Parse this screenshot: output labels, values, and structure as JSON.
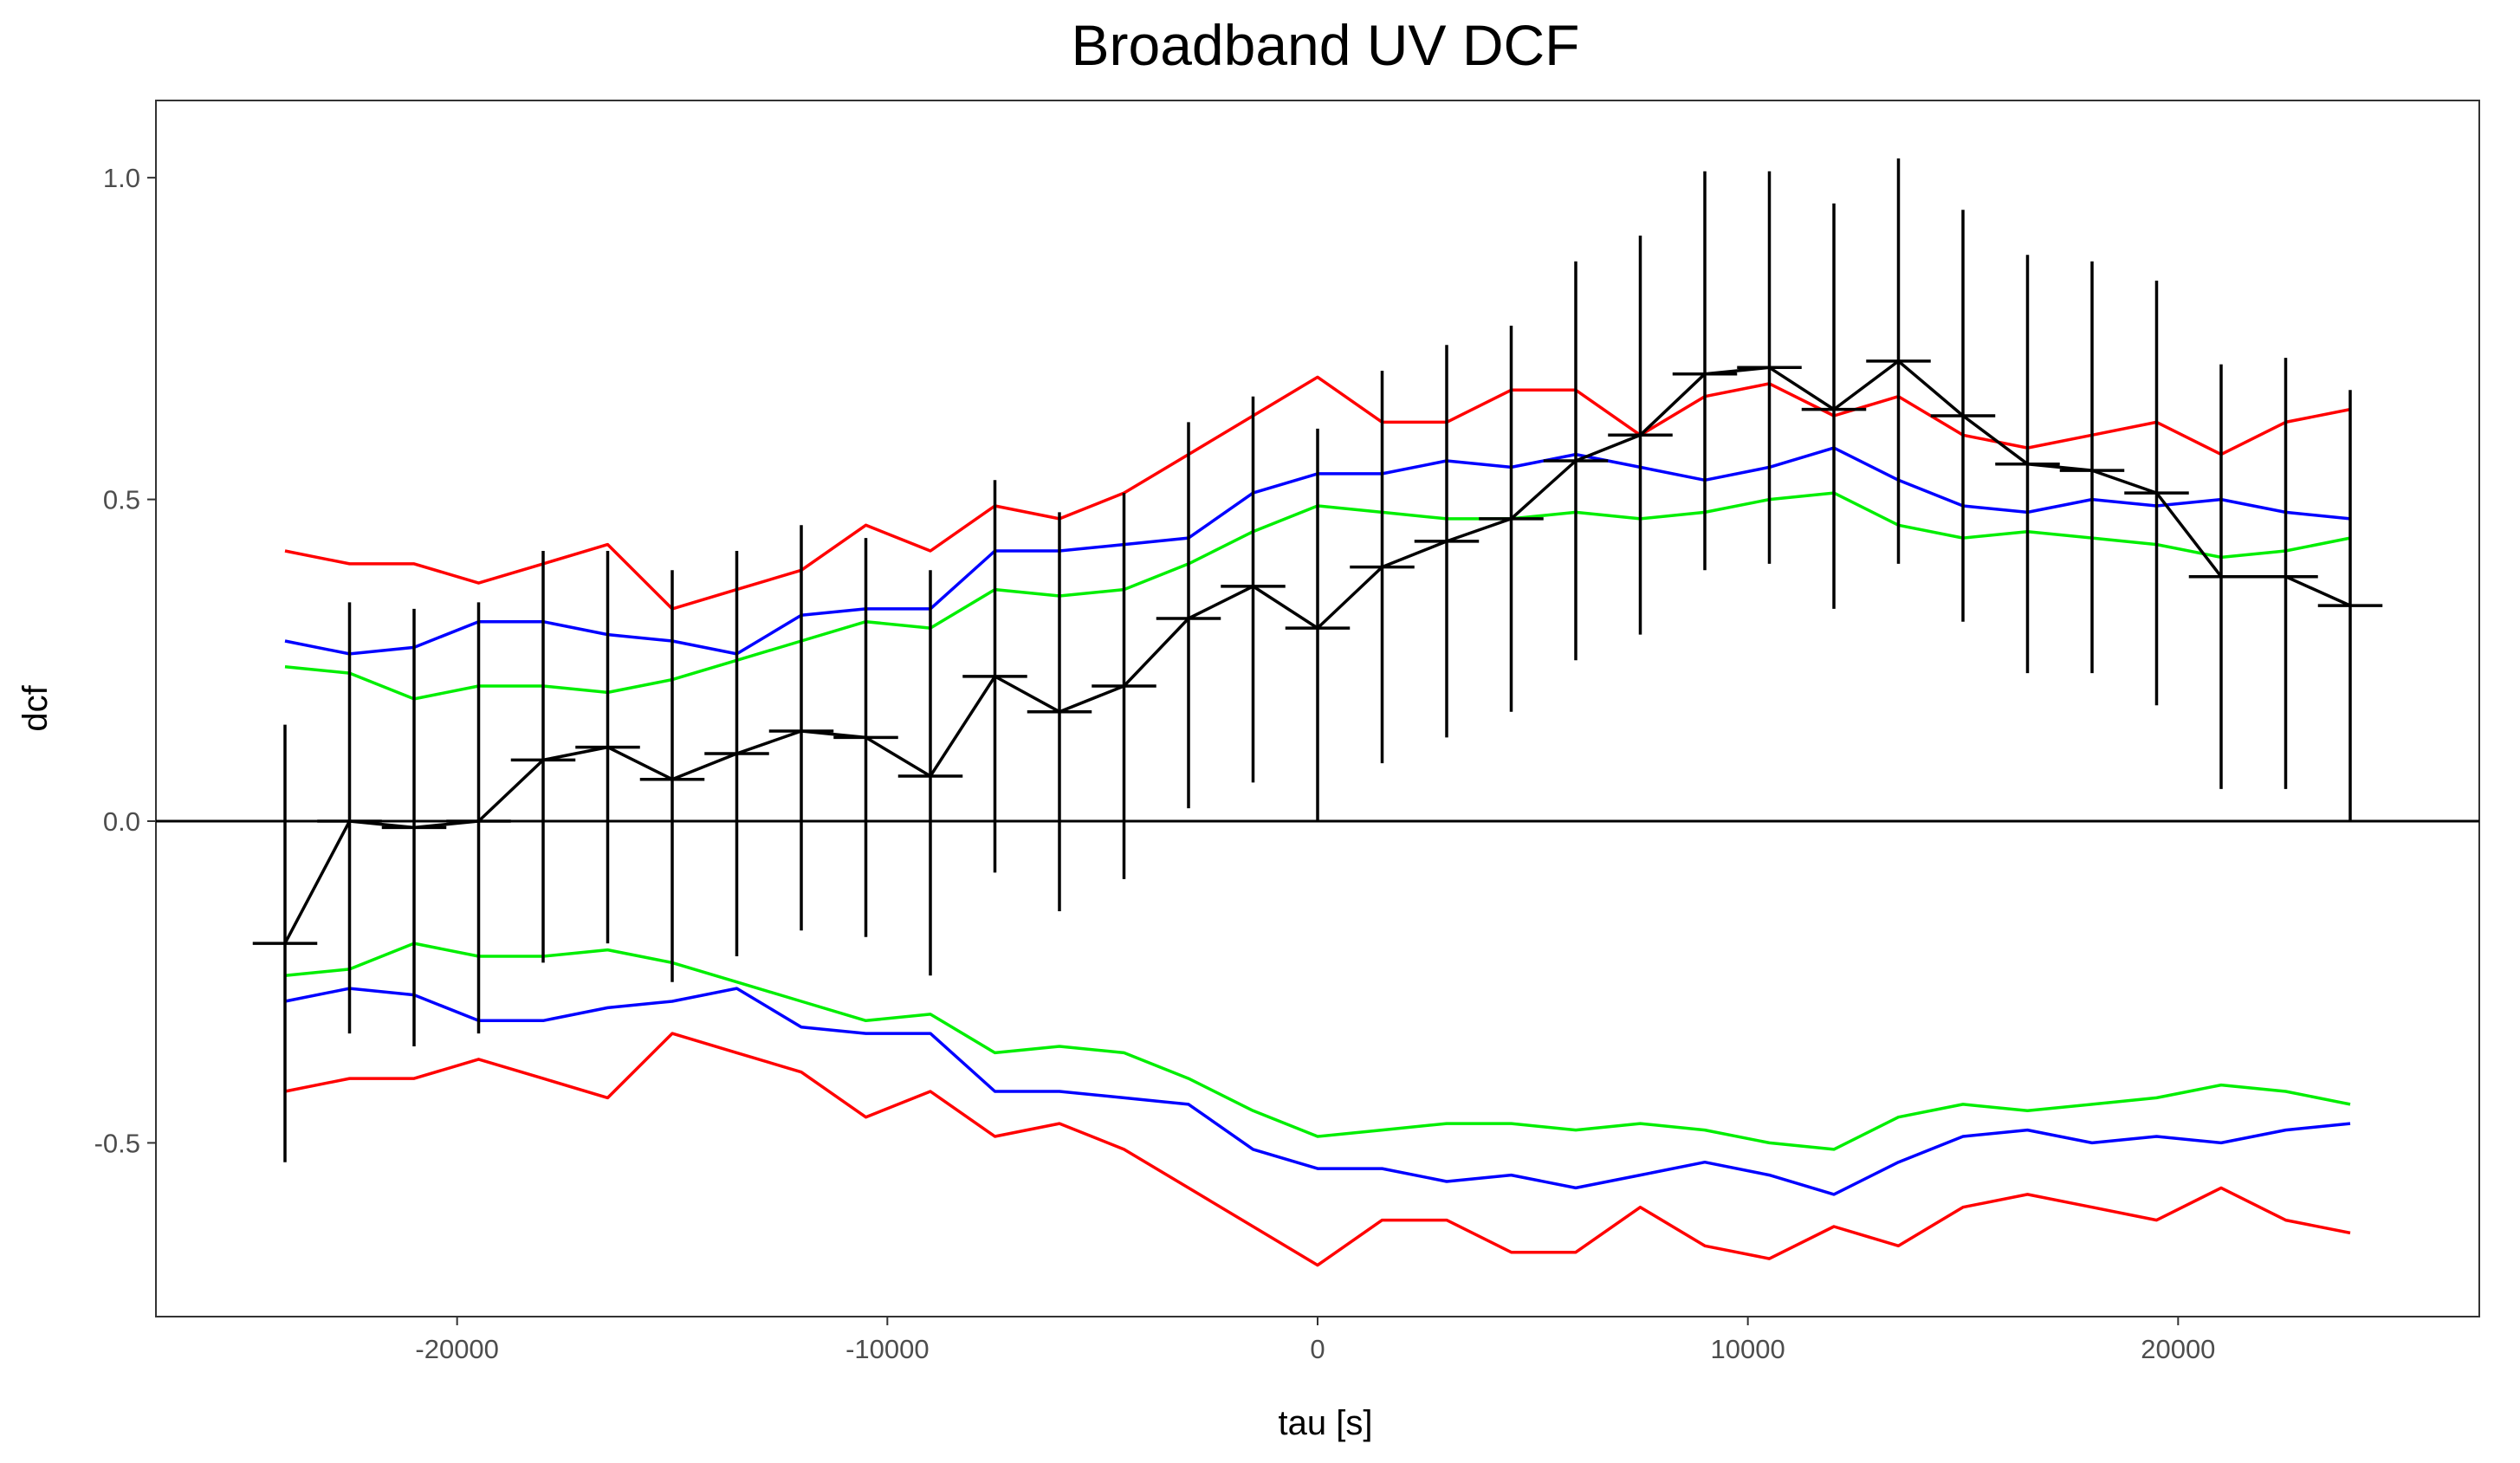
{
  "chart_data": {
    "type": "line",
    "title": "Broadband UV DCF",
    "xlabel": "tau [s]",
    "ylabel": "dcf",
    "xlim": [
      -27000,
      27000
    ],
    "ylim": [
      -0.77,
      1.12
    ],
    "x_ticks": [
      -20000,
      -10000,
      0,
      10000,
      20000
    ],
    "x_tick_labels": [
      "-20000",
      "-10000",
      "0",
      "10000",
      "20000"
    ],
    "y_ticks": [
      -0.5,
      0.0,
      0.5,
      1.0
    ],
    "y_tick_labels": [
      "-0.5",
      "0.0",
      "0.5",
      "1.0"
    ],
    "grid": false,
    "reference_line": {
      "y": 0
    },
    "x": [
      -24000,
      -22500,
      -21000,
      -19500,
      -18000,
      -16500,
      -15000,
      -13500,
      -12000,
      -10500,
      -9000,
      -7500,
      -6000,
      -4500,
      -3000,
      -1500,
      0,
      1500,
      3000,
      4500,
      6000,
      7500,
      9000,
      10500,
      12000,
      13500,
      15000,
      16500,
      18000,
      19500,
      21000,
      22500,
      24000
    ],
    "dcf": {
      "color": "#000000",
      "y": [
        -0.19,
        0.0,
        -0.01,
        0.0,
        0.095,
        0.115,
        0.065,
        0.105,
        0.14,
        0.13,
        0.07,
        0.225,
        0.17,
        0.21,
        0.315,
        0.365,
        0.3,
        0.395,
        0.435,
        0.47,
        0.56,
        0.6,
        0.695,
        0.705,
        0.64,
        0.715,
        0.63,
        0.555,
        0.545,
        0.51,
        0.38,
        0.38,
        0.335
      ],
      "err_low": [
        -0.53,
        -0.33,
        -0.35,
        -0.33,
        -0.22,
        -0.19,
        -0.25,
        -0.21,
        -0.17,
        -0.18,
        -0.24,
        -0.08,
        -0.14,
        -0.09,
        0.02,
        0.06,
        0.0,
        0.09,
        0.13,
        0.17,
        0.25,
        0.29,
        0.39,
        0.4,
        0.33,
        0.4,
        0.31,
        0.23,
        0.23,
        0.18,
        0.05,
        0.05,
        0.0
      ],
      "err_high": [
        0.15,
        0.34,
        0.33,
        0.34,
        0.42,
        0.42,
        0.39,
        0.42,
        0.46,
        0.44,
        0.39,
        0.53,
        0.48,
        0.51,
        0.62,
        0.66,
        0.61,
        0.7,
        0.74,
        0.77,
        0.87,
        0.91,
        1.01,
        1.01,
        0.96,
        1.03,
        0.95,
        0.88,
        0.87,
        0.84,
        0.71,
        0.72,
        0.67
      ],
      "bin_halfwidth": 750
    },
    "series": [
      {
        "color": "#ff0000",
        "y": [
          0.42,
          0.4,
          0.4,
          0.37,
          0.4,
          0.43,
          0.33,
          0.36,
          0.39,
          0.46,
          0.42,
          0.49,
          0.47,
          0.51,
          0.57,
          0.63,
          0.69,
          0.62,
          0.62,
          0.67,
          0.67,
          0.6,
          0.66,
          0.68,
          0.63,
          0.66,
          0.6,
          0.58,
          0.6,
          0.62,
          0.57,
          0.62,
          0.64
        ]
      },
      {
        "color": "#0000ff",
        "y": [
          0.28,
          0.26,
          0.27,
          0.31,
          0.31,
          0.29,
          0.28,
          0.26,
          0.32,
          0.33,
          0.33,
          0.42,
          0.42,
          0.43,
          0.44,
          0.51,
          0.54,
          0.54,
          0.56,
          0.55,
          0.57,
          0.55,
          0.53,
          0.55,
          0.58,
          0.53,
          0.49,
          0.48,
          0.5,
          0.49,
          0.5,
          0.48,
          0.47
        ]
      },
      {
        "color": "#00ee00",
        "y": [
          0.24,
          0.23,
          0.19,
          0.21,
          0.21,
          0.2,
          0.22,
          0.25,
          0.28,
          0.31,
          0.3,
          0.36,
          0.35,
          0.36,
          0.4,
          0.45,
          0.49,
          0.48,
          0.47,
          0.47,
          0.48,
          0.47,
          0.48,
          0.5,
          0.51,
          0.46,
          0.44,
          0.45,
          0.44,
          0.43,
          0.41,
          0.42,
          0.44
        ]
      },
      {
        "color": "#ff0000",
        "y": [
          -0.42,
          -0.4,
          -0.4,
          -0.37,
          -0.4,
          -0.43,
          -0.33,
          -0.36,
          -0.39,
          -0.46,
          -0.42,
          -0.49,
          -0.47,
          -0.51,
          -0.57,
          -0.63,
          -0.69,
          -0.62,
          -0.62,
          -0.67,
          -0.67,
          -0.6,
          -0.66,
          -0.68,
          -0.63,
          -0.66,
          -0.6,
          -0.58,
          -0.6,
          -0.62,
          -0.57,
          -0.62,
          -0.64
        ]
      },
      {
        "color": "#0000ff",
        "y": [
          -0.28,
          -0.26,
          -0.27,
          -0.31,
          -0.31,
          -0.29,
          -0.28,
          -0.26,
          -0.32,
          -0.33,
          -0.33,
          -0.42,
          -0.42,
          -0.43,
          -0.44,
          -0.51,
          -0.54,
          -0.54,
          -0.56,
          -0.55,
          -0.57,
          -0.55,
          -0.53,
          -0.55,
          -0.58,
          -0.53,
          -0.49,
          -0.48,
          -0.5,
          -0.49,
          -0.5,
          -0.48,
          -0.47
        ]
      },
      {
        "color": "#00ee00",
        "y": [
          -0.24,
          -0.23,
          -0.19,
          -0.21,
          -0.21,
          -0.2,
          -0.22,
          -0.25,
          -0.28,
          -0.31,
          -0.3,
          -0.36,
          -0.35,
          -0.36,
          -0.4,
          -0.45,
          -0.49,
          -0.48,
          -0.47,
          -0.47,
          -0.48,
          -0.47,
          -0.48,
          -0.5,
          -0.51,
          -0.46,
          -0.44,
          -0.45,
          -0.44,
          -0.43,
          -0.41,
          -0.42,
          -0.44
        ]
      }
    ]
  }
}
